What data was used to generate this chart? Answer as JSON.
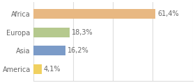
{
  "categories": [
    "Africa",
    "Europa",
    "Asia",
    "America"
  ],
  "values": [
    61.4,
    18.3,
    16.2,
    4.1
  ],
  "labels": [
    "61,4%",
    "18,3%",
    "16,2%",
    "4,1%"
  ],
  "bar_colors": [
    "#e8b882",
    "#b5c98e",
    "#7b9bc8",
    "#f0d060"
  ],
  "background_color": "#ffffff",
  "grid_color": "#dddddd",
  "label_fontsize": 7.0,
  "tick_fontsize": 7.0,
  "xlim": [
    0,
    80
  ],
  "bar_height": 0.52
}
